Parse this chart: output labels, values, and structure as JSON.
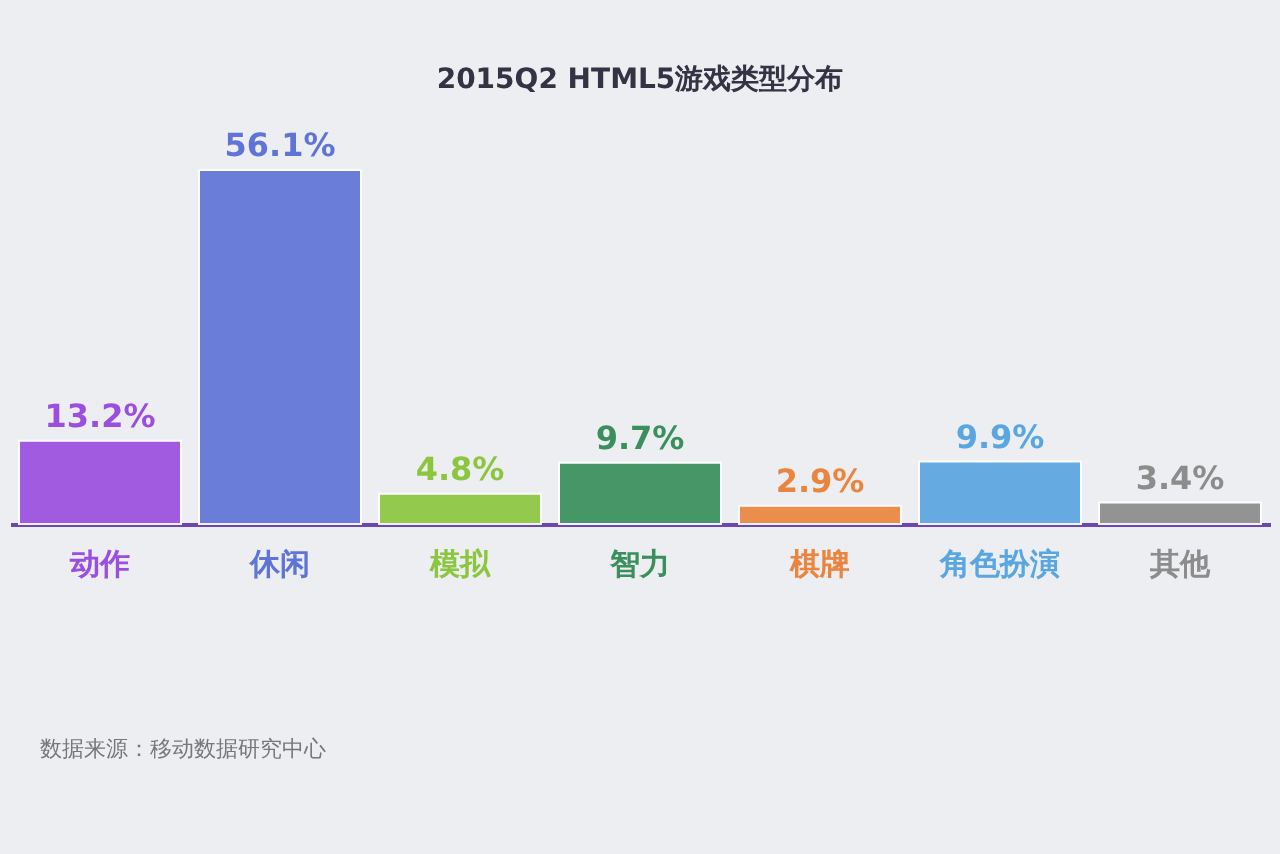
{
  "chart_data": {
    "type": "bar",
    "title": "2015Q2 HTML5游戏类型分布",
    "categories": [
      "动作",
      "休闲",
      "模拟",
      "智力",
      "棋牌",
      "角色扮演",
      "其他"
    ],
    "values": [
      13.2,
      56.1,
      4.8,
      9.7,
      2.9,
      9.9,
      3.4
    ],
    "colors": [
      "#9b4fe0",
      "#5f74d6",
      "#8cc63f",
      "#3a8f5c",
      "#ea8540",
      "#5aa6e0",
      "#8c8c8c"
    ],
    "value_labels": [
      "13.2%",
      "56.1%",
      "4.8%",
      "9.7%",
      "2.9%",
      "9.9%",
      "3.4%"
    ],
    "annotations": [
      "数据来源：移动数据研究中心"
    ]
  }
}
